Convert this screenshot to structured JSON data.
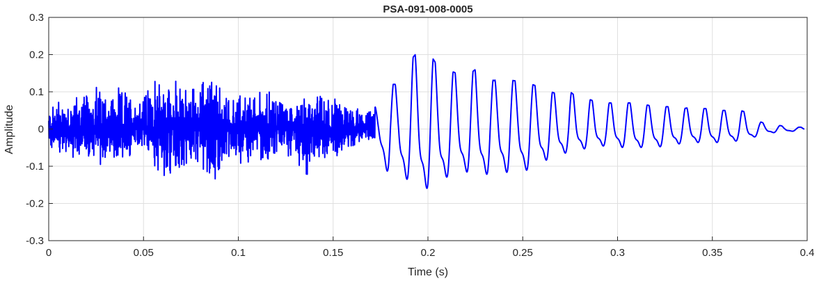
{
  "chart_data": {
    "type": "line",
    "title": "PSA-091-008-0005",
    "xlabel": "Time (s)",
    "ylabel": "Amplitude",
    "xlim": [
      0,
      0.4
    ],
    "ylim": [
      -0.3,
      0.3
    ],
    "xticks": [
      0,
      0.05,
      0.1,
      0.15,
      0.2,
      0.25,
      0.3,
      0.35,
      0.4
    ],
    "xtick_labels": [
      "0",
      "0.05",
      "0.1",
      "0.15",
      "0.2",
      "0.25",
      "0.3",
      "0.35",
      "0.4"
    ],
    "yticks": [
      -0.3,
      -0.2,
      -0.1,
      0,
      0.1,
      0.2,
      0.3
    ],
    "ytick_labels": [
      "-0.3",
      "-0.2",
      "-0.1",
      "0",
      "0.1",
      "0.2",
      "0.3"
    ],
    "grid": true,
    "line_color": "#0000ff",
    "series": [
      {
        "name": "",
        "x": [
          0.0,
          0.005,
          0.01,
          0.015,
          0.02,
          0.025,
          0.03,
          0.035,
          0.04,
          0.045,
          0.05,
          0.055,
          0.06,
          0.065,
          0.07,
          0.075,
          0.08,
          0.085,
          0.09,
          0.095,
          0.1,
          0.105,
          0.11,
          0.115,
          0.12,
          0.125,
          0.13,
          0.135,
          0.14,
          0.145,
          0.15,
          0.155,
          0.16,
          0.165,
          0.17,
          0.175,
          0.18,
          0.185,
          0.19,
          0.195,
          0.2,
          0.205,
          0.21,
          0.215,
          0.22,
          0.225,
          0.23,
          0.235,
          0.24,
          0.245,
          0.25,
          0.255,
          0.26,
          0.265,
          0.27,
          0.275,
          0.28,
          0.285,
          0.29,
          0.295,
          0.3,
          0.305,
          0.31,
          0.315,
          0.32,
          0.325,
          0.33,
          0.335,
          0.34,
          0.345,
          0.35,
          0.355,
          0.36,
          0.365,
          0.37,
          0.375,
          0.38,
          0.385,
          0.39,
          0.395
        ],
        "upper": [
          0.06,
          0.1,
          0.09,
          0.11,
          0.1,
          0.14,
          0.12,
          0.11,
          0.12,
          0.1,
          0.12,
          0.13,
          0.16,
          0.15,
          0.12,
          0.14,
          0.13,
          0.19,
          0.12,
          0.12,
          0.11,
          0.1,
          0.11,
          0.12,
          0.1,
          0.09,
          0.09,
          0.11,
          0.08,
          0.12,
          0.11,
          0.08,
          0.06,
          0.06,
          0.05,
          0.07,
          0.12,
          0.12,
          0.18,
          0.21,
          0.21,
          0.17,
          0.16,
          0.15,
          0.14,
          0.16,
          0.14,
          0.13,
          0.15,
          0.13,
          0.13,
          0.12,
          0.11,
          0.1,
          0.09,
          0.1,
          0.08,
          0.08,
          0.07,
          0.07,
          0.07,
          0.07,
          0.07,
          0.065,
          0.06,
          0.06,
          0.06,
          0.055,
          0.06,
          0.055,
          0.055,
          0.05,
          0.05,
          0.05,
          0.04,
          0.02,
          0.01,
          0.01,
          0.005,
          0.005
        ],
        "lower": [
          -0.05,
          -0.08,
          -0.07,
          -0.1,
          -0.09,
          -0.12,
          -0.1,
          -0.09,
          -0.09,
          -0.08,
          -0.07,
          -0.1,
          -0.15,
          -0.17,
          -0.12,
          -0.11,
          -0.1,
          -0.18,
          -0.15,
          -0.08,
          -0.1,
          -0.1,
          -0.09,
          -0.1,
          -0.09,
          -0.08,
          -0.08,
          -0.15,
          -0.12,
          -0.08,
          -0.09,
          -0.07,
          -0.05,
          -0.04,
          -0.03,
          -0.1,
          -0.17,
          -0.17,
          -0.18,
          -0.21,
          -0.21,
          -0.2,
          -0.17,
          -0.16,
          -0.15,
          -0.17,
          -0.16,
          -0.16,
          -0.15,
          -0.16,
          -0.15,
          -0.14,
          -0.12,
          -0.1,
          -0.09,
          -0.08,
          -0.07,
          -0.07,
          -0.06,
          -0.06,
          -0.06,
          -0.07,
          -0.07,
          -0.06,
          -0.065,
          -0.06,
          -0.055,
          -0.05,
          -0.05,
          -0.045,
          -0.05,
          -0.045,
          -0.045,
          -0.04,
          -0.035,
          -0.02,
          -0.015,
          -0.01,
          -0.01,
          -0.005
        ]
      }
    ]
  }
}
